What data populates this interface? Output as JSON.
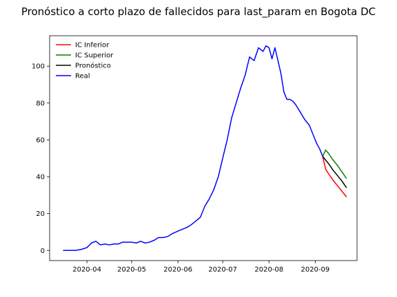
{
  "chart_data": {
    "type": "line",
    "title": "Pronóstico a corto plazo de fallecidos para last_param en Bogota DC",
    "xlabel": "",
    "ylabel": "",
    "xlim": [
      "2020-03-07",
      "2020-09-29"
    ],
    "ylim": [
      -5.5,
      116.5
    ],
    "x_ticks": [
      "2020-04",
      "2020-05",
      "2020-06",
      "2020-07",
      "2020-08",
      "2020-09"
    ],
    "y_ticks": [
      0,
      20,
      40,
      60,
      80,
      100
    ],
    "legend_position": "top-left",
    "grid": false,
    "series": [
      {
        "name": "IC Inferior",
        "color": "#ff0000",
        "x": [
          "2020-09-06",
          "2020-09-08",
          "2020-09-10",
          "2020-09-13",
          "2020-09-16",
          "2020-09-19",
          "2020-09-22"
        ],
        "y": [
          51,
          44,
          41.5,
          38,
          35,
          32,
          29
        ]
      },
      {
        "name": "IC Superior",
        "color": "#008000",
        "x": [
          "2020-09-06",
          "2020-09-08",
          "2020-09-10",
          "2020-09-13",
          "2020-09-16",
          "2020-09-19",
          "2020-09-22"
        ],
        "y": [
          51,
          54.5,
          52.5,
          49,
          46,
          42.5,
          39
        ]
      },
      {
        "name": "Pronóstico",
        "color": "#000000",
        "x": [
          "2020-09-06",
          "2020-09-08",
          "2020-09-10",
          "2020-09-13",
          "2020-09-16",
          "2020-09-19",
          "2020-09-22"
        ],
        "y": [
          51,
          49,
          47,
          43.5,
          40.5,
          37.5,
          34
        ]
      },
      {
        "name": "Real",
        "color": "#0000ff",
        "x": [
          "2020-03-16",
          "2020-03-20",
          "2020-03-24",
          "2020-03-28",
          "2020-04-01",
          "2020-04-04",
          "2020-04-07",
          "2020-04-10",
          "2020-04-13",
          "2020-04-16",
          "2020-04-19",
          "2020-04-22",
          "2020-04-25",
          "2020-04-28",
          "2020-05-01",
          "2020-05-04",
          "2020-05-07",
          "2020-05-10",
          "2020-05-13",
          "2020-05-16",
          "2020-05-19",
          "2020-05-22",
          "2020-05-25",
          "2020-05-28",
          "2020-06-01",
          "2020-06-04",
          "2020-06-07",
          "2020-06-10",
          "2020-06-13",
          "2020-06-16",
          "2020-06-19",
          "2020-06-22",
          "2020-06-25",
          "2020-06-28",
          "2020-07-01",
          "2020-07-04",
          "2020-07-07",
          "2020-07-10",
          "2020-07-13",
          "2020-07-16",
          "2020-07-19",
          "2020-07-22",
          "2020-07-25",
          "2020-07-28",
          "2020-07-30",
          "2020-08-01",
          "2020-08-03",
          "2020-08-05",
          "2020-08-07",
          "2020-08-09",
          "2020-08-11",
          "2020-08-13",
          "2020-08-15",
          "2020-08-17",
          "2020-08-19",
          "2020-08-22",
          "2020-08-25",
          "2020-08-28",
          "2020-08-31",
          "2020-09-02",
          "2020-09-04",
          "2020-09-06"
        ],
        "y": [
          0,
          0,
          0,
          0.5,
          1.5,
          4,
          5,
          3,
          3.5,
          3,
          3.5,
          3.5,
          4.5,
          4.5,
          4.5,
          4,
          5,
          4,
          4.5,
          5.5,
          7,
          7,
          7.5,
          9,
          10.5,
          11.5,
          12.5,
          14,
          16,
          18,
          24,
          28,
          33,
          40,
          50,
          60,
          72,
          80,
          88,
          95,
          105,
          103,
          110,
          108,
          111,
          110,
          104,
          110,
          103,
          96,
          86,
          82,
          82,
          81,
          79,
          75,
          71,
          68,
          62,
          58,
          55,
          51
        ]
      }
    ]
  }
}
